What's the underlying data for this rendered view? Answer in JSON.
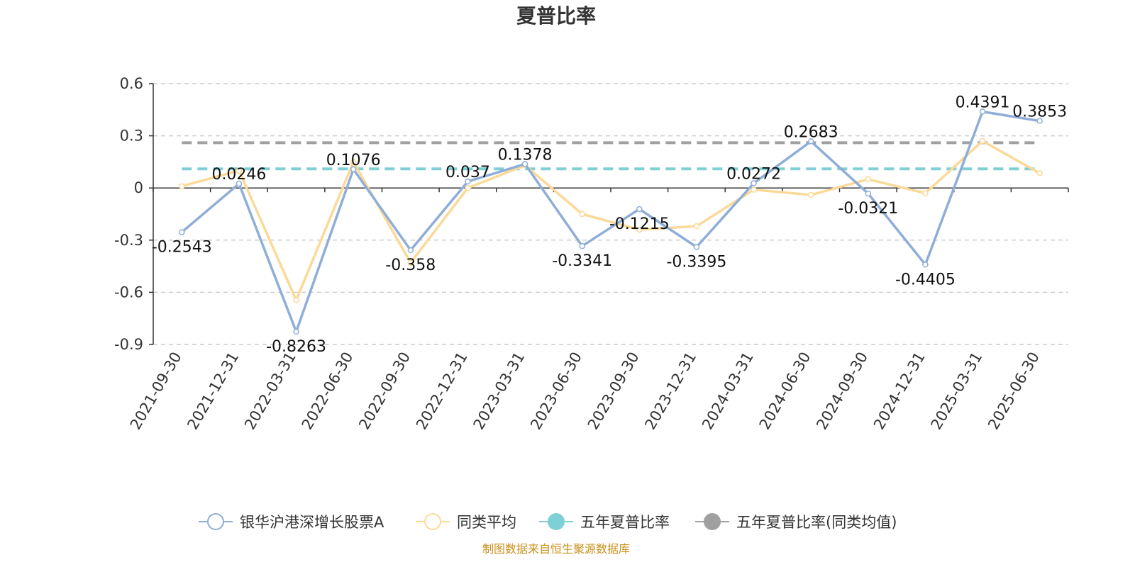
{
  "title": "夏普比率",
  "source": "制图数据来自恒生聚源数据库",
  "chart_data": {
    "type": "line",
    "title": "夏普比率",
    "categories": [
      "2021-09-30",
      "2021-12-31",
      "2022-03-31",
      "2022-06-30",
      "2022-09-30",
      "2022-12-31",
      "2023-03-31",
      "2023-06-30",
      "2023-09-30",
      "2023-12-31",
      "2024-03-31",
      "2024-06-30",
      "2024-09-30",
      "2024-12-31",
      "2025-03-31",
      "2025-06-30"
    ],
    "y_ticks": [
      "0.6",
      "0.3",
      "0",
      "-0.3",
      "-0.6",
      "-0.9"
    ],
    "ylim": [
      -0.9,
      0.6
    ],
    "grid": true,
    "legend_position": "bottom",
    "series": [
      {
        "name": "银华沪港深增长股票A",
        "color": "#8eaed8",
        "values": [
          -0.2543,
          0.0246,
          -0.8263,
          0.1076,
          -0.358,
          0.037,
          0.1378,
          -0.3341,
          -0.1215,
          -0.3395,
          0.0272,
          0.2683,
          -0.0321,
          -0.4405,
          0.4391,
          0.3853
        ],
        "labels": [
          "-0.2543",
          "0.0246",
          "-0.8263",
          "0.1076",
          "-0.358",
          "0.037",
          "0.1378",
          "-0.3341",
          "-0.1215",
          "-0.3395",
          "0.0272",
          "0.2683",
          "-0.0321",
          "-0.4405",
          "0.4391",
          "0.3853"
        ]
      },
      {
        "name": "同类平均",
        "color": "#fbd998",
        "values": [
          0.01,
          0.1,
          -0.645,
          0.15,
          -0.43,
          0.0,
          0.13,
          -0.15,
          -0.24,
          -0.22,
          -0.01,
          -0.04,
          0.05,
          -0.03,
          0.27,
          0.085
        ]
      },
      {
        "name": "五年夏普比率",
        "color": "#7fd0d4",
        "constant": 0.11
      },
      {
        "name": "五年夏普比率(同类均值)",
        "color": "#a0a0a0",
        "constant": 0.26
      }
    ]
  }
}
